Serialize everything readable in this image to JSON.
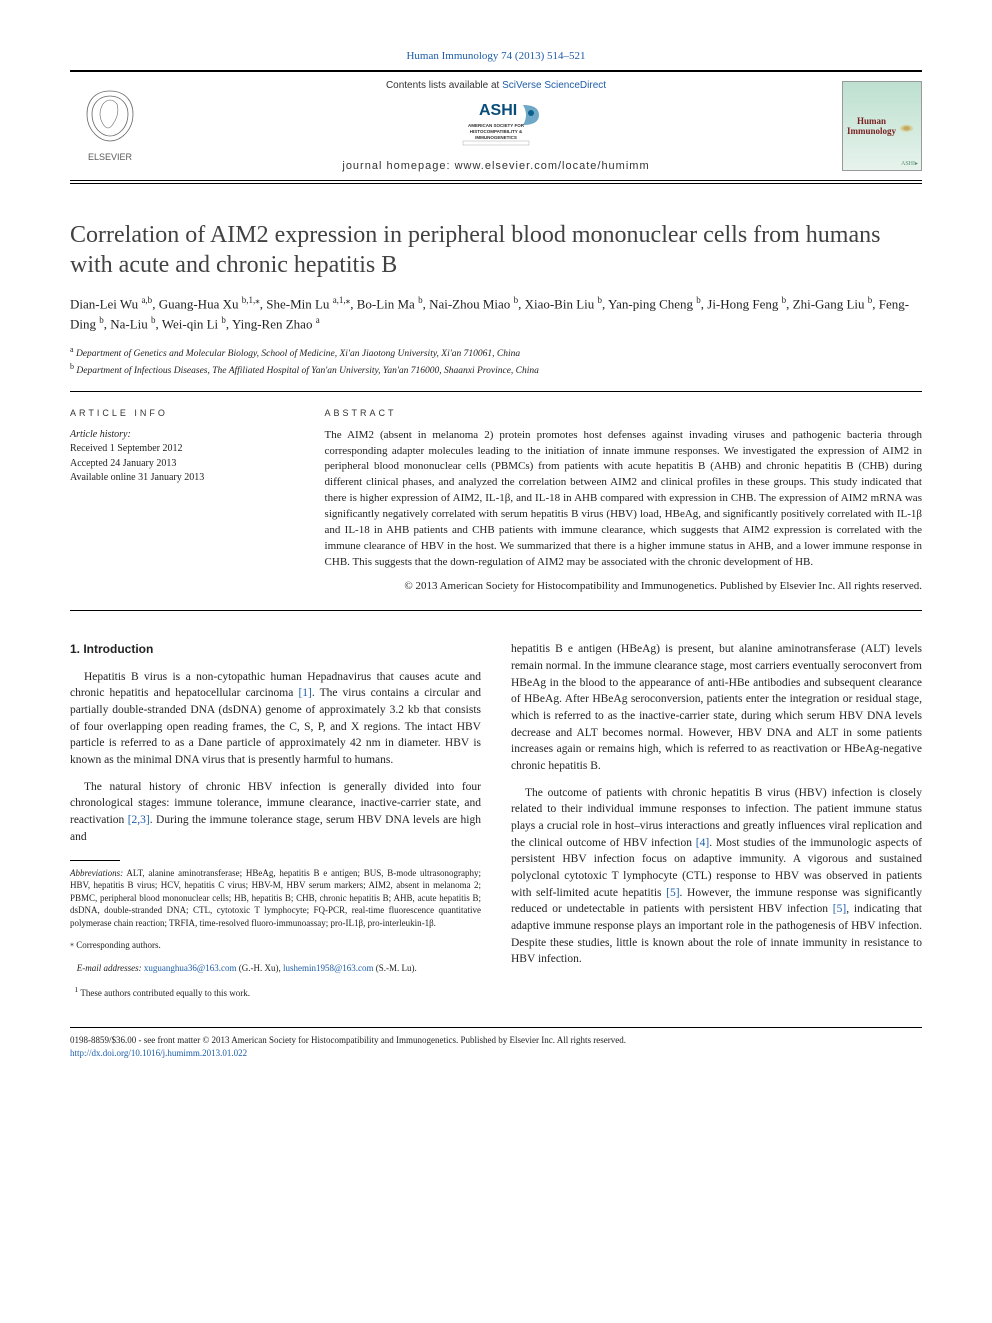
{
  "journal_ref": "Human Immunology 74 (2013) 514–521",
  "header": {
    "contents_prefix": "Contents lists available at ",
    "contents_link": "SciVerse ScienceDirect",
    "ashi_text_top": "ASHI",
    "ashi_text_lines": [
      "AMERICAN SOCIETY FOR",
      "HISTOCOMPATIBILITY &",
      "IMMUNOGENETICS"
    ],
    "homepage_prefix": "journal homepage: ",
    "homepage_link": "www.elsevier.com/locate/humimm",
    "cover_title": "Human Immunology",
    "elsevier_label": "ELSEVIER"
  },
  "title": "Correlation of AIM2 expression in peripheral blood mononuclear cells from humans with acute and chronic hepatitis B",
  "authors_html": "Dian-Lei Wu <sup>a,b</sup>, Guang-Hua Xu <sup>b,1,⁎</sup>, She-Min Lu <sup>a,1,⁎</sup>, Bo-Lin Ma <sup>b</sup>, Nai-Zhou Miao <sup>b</sup>, Xiao-Bin Liu <sup>b</sup>, Yan-ping Cheng <sup>b</sup>, Ji-Hong Feng <sup>b</sup>, Zhi-Gang Liu <sup>b</sup>, Feng-Ding <sup>b</sup>, Na-Liu <sup>b</sup>, Wei-qin Li <sup>b</sup>, Ying-Ren Zhao <sup>a</sup>",
  "affiliations": [
    {
      "key": "a",
      "text": "Department of Genetics and Molecular Biology, School of Medicine, Xi'an Jiaotong University, Xi'an 710061, China"
    },
    {
      "key": "b",
      "text": "Department of Infectious Diseases, The Affiliated Hospital of Yan'an University, Yan'an 716000, Shaanxi Province, China"
    }
  ],
  "article_info": {
    "head": "ARTICLE INFO",
    "history_label": "Article history:",
    "received": "Received 1 September 2012",
    "accepted": "Accepted 24 January 2013",
    "online": "Available online 31 January 2013"
  },
  "abstract": {
    "head": "ABSTRACT",
    "text": "The AIM2 (absent in melanoma 2) protein promotes host defenses against invading viruses and pathogenic bacteria through corresponding adapter molecules leading to the initiation of innate immune responses. We investigated the expression of AIM2 in peripheral blood mononuclear cells (PBMCs) from patients with acute hepatitis B (AHB) and chronic hepatitis B (CHB) during different clinical phases, and analyzed the correlation between AIM2 and clinical profiles in these groups. This study indicated that there is higher expression of AIM2, IL-1β, and IL-18 in AHB compared with expression in CHB. The expression of AIM2 mRNA was significantly negatively correlated with serum hepatitis B virus (HBV) load, HBeAg, and significantly positively correlated with IL-1β and IL-18 in AHB patients and CHB patients with immune clearance, which suggests that AIM2 expression is correlated with the immune clearance of HBV in the host. We summarized that there is a higher immune status in AHB, and a lower immune response in CHB. This suggests that the down-regulation of AIM2 may be associated with the chronic development of HB.",
    "copyright": "© 2013 American Society for Histocompatibility and Immunogenetics. Published by Elsevier Inc. All rights reserved."
  },
  "section1": {
    "head": "1. Introduction",
    "p1": "Hepatitis B virus is a non-cytopathic human Hepadnavirus that causes acute and chronic hepatitis and hepatocellular carcinoma ",
    "c1": "[1]",
    "p1b": ". The virus contains a circular and partially double-stranded DNA (dsDNA) genome of approximately 3.2 kb that consists of four overlapping open reading frames, the C, S, P, and X regions. The intact HBV particle is referred to as a Dane particle of approximately 42 nm in diameter. HBV is known as the minimal DNA virus that is presently harmful to humans.",
    "p2a": "The natural history of chronic HBV infection is generally divided into four chronological stages: immune tolerance, immune clearance, inactive-carrier state, and reactivation ",
    "c2": "[2,3]",
    "p2b": ". During the immune tolerance stage, serum HBV DNA levels are high and",
    "p3": "hepatitis B e antigen (HBeAg) is present, but alanine aminotransferase (ALT) levels remain normal. In the immune clearance stage, most carriers eventually seroconvert from HBeAg in the blood to the appearance of anti-HBe antibodies and subsequent clearance of HBeAg. After HBeAg seroconversion, patients enter the integration or residual stage, which is referred to as the inactive-carrier state, during which serum HBV DNA levels decrease and ALT becomes normal. However, HBV DNA and ALT in some patients increases again or remains high, which is referred to as reactivation or HBeAg-negative chronic hepatitis B.",
    "p4a": "The outcome of patients with chronic hepatitis B virus (HBV) infection is closely related to their individual immune responses to infection. The patient immune status plays a crucial role in host–virus interactions and greatly influences viral replication and the clinical outcome of HBV infection ",
    "c4": "[4]",
    "p4b": ". Most studies of the immunologic aspects of persistent HBV infection focus on adaptive immunity. A vigorous and sustained polyclonal cytotoxic T lymphocyte (CTL) response to HBV was observed in patients with self-limited acute hepatitis ",
    "c5": "[5]",
    "p4c": ". However, the immune response was significantly reduced or undetectable in patients with persistent HBV infection ",
    "c6": "[5]",
    "p4d": ", indicating that adaptive immune response plays an important role in the pathogenesis of HBV infection. Despite these studies, little is known about the role of innate immunity in resistance to HBV infection."
  },
  "footnotes": {
    "abbr_label": "Abbreviations:",
    "abbr_text": " ALT, alanine aminotransferase; HBeAg, hepatitis B e antigen; BUS, B-mode ultrasonography; HBV, hepatitis B virus; HCV, hepatitis C virus; HBV-M, HBV serum markers; AIM2, absent in melanoma 2; PBMC, peripheral blood mononuclear cells; HB, hepatitis B; CHB, chronic hepatitis B; AHB, acute hepatitis B; dsDNA, double-stranded DNA; CTL, cytotoxic T lymphocyte; FQ-PCR, real-time fluorescence quantitative polymerase chain reaction; TRFIA, time-resolved fluoro-immunoassay; pro-IL1β, pro-interleukin-1β.",
    "corr_label": "Corresponding authors.",
    "email_label": "E-mail addresses:",
    "email1": "xuguanghua36@163.com",
    "email1_who": " (G.-H. Xu), ",
    "email2": "lushemin1958@163.com",
    "email2_who": " (S.-M. Lu).",
    "contrib": "These authors contributed equally to this work."
  },
  "page_foot": {
    "line1": "0198-8859/$36.00 - see front matter © 2013 American Society for Histocompatibility and Immunogenetics. Published by Elsevier Inc. All rights reserved.",
    "doi": "http://dx.doi.org/10.1016/j.humimm.2013.01.022"
  },
  "colors": {
    "link": "#1d5da8",
    "text": "#222222",
    "title": "#424242",
    "elsevier_orange": "#e98b2c",
    "elsevier_text": "#5a5a5a",
    "cover_bg_top": "#bde0d0",
    "cover_title": "#7a1f1f"
  }
}
